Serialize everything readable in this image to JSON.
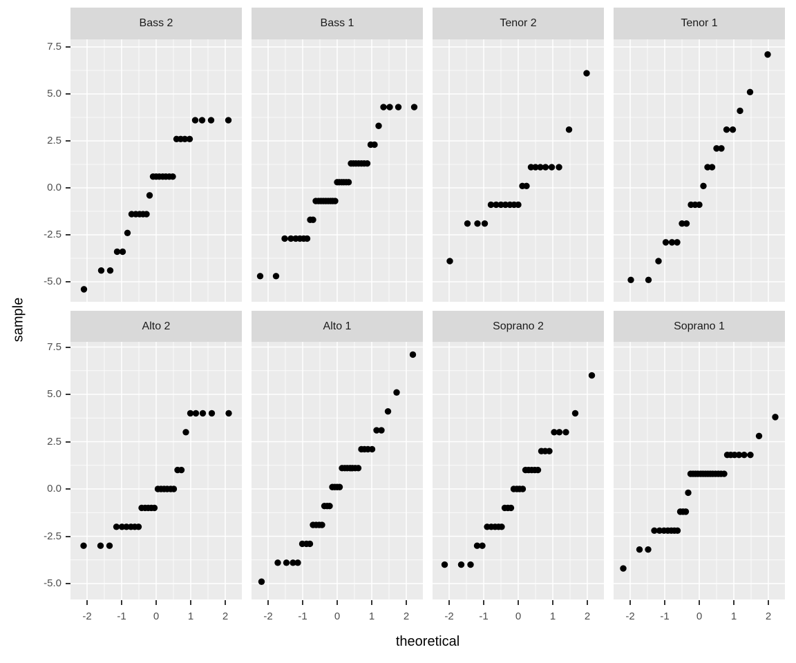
{
  "axis": {
    "x_title": "theoretical",
    "y_title": "sample",
    "x_tick_labels": [
      "-2",
      "-1",
      "0",
      "1",
      "2"
    ],
    "x_tick_values": [
      -2,
      -1,
      0,
      1,
      2
    ],
    "y_tick_labels": [
      "7.5",
      "5.0",
      "2.5",
      "0.0",
      "-2.5",
      "-5.0"
    ],
    "y_tick_values": [
      7.5,
      5.0,
      2.5,
      0.0,
      -2.5,
      -5.0
    ]
  },
  "style": {
    "panel_background": "#ebebeb",
    "strip_background": "#d9d9d9",
    "grid_color": "#ffffff",
    "point_color": "#000000",
    "axis_text_color": "#4d4d4d",
    "tick_mark_color": "#333333",
    "point_radius": 4.7
  },
  "chart_data": {
    "type": "scatter",
    "title": "",
    "xlabel": "theoretical",
    "ylabel": "sample",
    "x_range": [
      -2.48,
      2.48
    ],
    "y_range": [
      -5.9,
      7.9
    ],
    "grid": "major+minor",
    "legend_position": "none",
    "x_major_gridlines": [
      -2,
      -1,
      0,
      1,
      2
    ],
    "x_minor_gridlines": [
      -1.5,
      -0.5,
      0.5,
      1.5
    ],
    "y_major_gridlines": [
      7.5,
      5.0,
      2.5,
      0.0,
      -2.5,
      -5.0
    ],
    "y_minor_gridlines": [
      6.25,
      3.75,
      1.25,
      -1.25,
      -3.75
    ],
    "facets": [
      {
        "label": "Bass 2",
        "row": 0,
        "col": 0,
        "n": 27,
        "points": [
          [
            -2.09,
            -5.4
          ],
          [
            -1.59,
            -4.4
          ],
          [
            -1.33,
            -4.4
          ],
          [
            -1.13,
            -3.4
          ],
          [
            -0.97,
            -3.4
          ],
          [
            -0.83,
            -2.4
          ],
          [
            -0.71,
            -1.4
          ],
          [
            -0.59,
            -1.4
          ],
          [
            -0.48,
            -1.4
          ],
          [
            -0.38,
            -1.4
          ],
          [
            -0.28,
            -1.4
          ],
          [
            -0.19,
            -0.4
          ],
          [
            -0.09,
            0.6
          ],
          [
            0,
            0.6
          ],
          [
            0.09,
            0.6
          ],
          [
            0.19,
            0.6
          ],
          [
            0.28,
            0.6
          ],
          [
            0.38,
            0.6
          ],
          [
            0.48,
            0.6
          ],
          [
            0.59,
            2.6
          ],
          [
            0.71,
            2.6
          ],
          [
            0.83,
            2.6
          ],
          [
            0.97,
            2.6
          ],
          [
            1.13,
            3.6
          ],
          [
            1.33,
            3.6
          ],
          [
            1.59,
            3.6
          ],
          [
            2.09,
            3.6
          ]
        ]
      },
      {
        "label": "Bass 1",
        "row": 0,
        "col": 1,
        "n": 39,
        "points": [
          [
            -2.23,
            -4.7
          ],
          [
            -1.77,
            -4.7
          ],
          [
            -1.52,
            -2.7
          ],
          [
            -1.34,
            -2.7
          ],
          [
            -1.2,
            -2.7
          ],
          [
            -1.08,
            -2.7
          ],
          [
            -0.97,
            -2.7
          ],
          [
            -0.87,
            -2.7
          ],
          [
            -0.78,
            -1.7
          ],
          [
            -0.7,
            -1.7
          ],
          [
            -0.62,
            -0.7
          ],
          [
            -0.54,
            -0.7
          ],
          [
            -0.47,
            -0.7
          ],
          [
            -0.4,
            -0.7
          ],
          [
            -0.33,
            -0.7
          ],
          [
            -0.26,
            -0.7
          ],
          [
            -0.19,
            -0.7
          ],
          [
            -0.13,
            -0.7
          ],
          [
            -0.06,
            -0.7
          ],
          [
            0,
            0.3
          ],
          [
            0.06,
            0.3
          ],
          [
            0.13,
            0.3
          ],
          [
            0.19,
            0.3
          ],
          [
            0.26,
            0.3
          ],
          [
            0.33,
            0.3
          ],
          [
            0.4,
            1.3
          ],
          [
            0.47,
            1.3
          ],
          [
            0.54,
            1.3
          ],
          [
            0.62,
            1.3
          ],
          [
            0.7,
            1.3
          ],
          [
            0.78,
            1.3
          ],
          [
            0.87,
            1.3
          ],
          [
            0.97,
            2.3
          ],
          [
            1.08,
            2.3
          ],
          [
            1.2,
            3.3
          ],
          [
            1.34,
            4.3
          ],
          [
            1.52,
            4.3
          ],
          [
            1.77,
            4.3
          ],
          [
            2.23,
            4.3
          ]
        ]
      },
      {
        "label": "Tenor 2",
        "row": 0,
        "col": 2,
        "n": 21,
        "points": [
          [
            -1.98,
            -3.9
          ],
          [
            -1.47,
            -1.9
          ],
          [
            -1.18,
            -1.9
          ],
          [
            -0.97,
            -1.9
          ],
          [
            -0.79,
            -0.9
          ],
          [
            -0.64,
            -0.9
          ],
          [
            -0.5,
            -0.9
          ],
          [
            -0.37,
            -0.9
          ],
          [
            -0.24,
            -0.9
          ],
          [
            -0.12,
            -0.9
          ],
          [
            0,
            -0.9
          ],
          [
            0.12,
            0.1
          ],
          [
            0.24,
            0.1
          ],
          [
            0.37,
            1.1
          ],
          [
            0.5,
            1.1
          ],
          [
            0.64,
            1.1
          ],
          [
            0.79,
            1.1
          ],
          [
            0.97,
            1.1
          ],
          [
            1.18,
            1.1
          ],
          [
            1.47,
            3.1
          ],
          [
            1.98,
            6.1
          ]
        ]
      },
      {
        "label": "Tenor 1",
        "row": 0,
        "col": 3,
        "n": 21,
        "points": [
          [
            -1.98,
            -4.9
          ],
          [
            -1.47,
            -4.9
          ],
          [
            -1.18,
            -3.9
          ],
          [
            -0.97,
            -2.9
          ],
          [
            -0.79,
            -2.9
          ],
          [
            -0.64,
            -2.9
          ],
          [
            -0.5,
            -1.9
          ],
          [
            -0.37,
            -1.9
          ],
          [
            -0.24,
            -0.9
          ],
          [
            -0.12,
            -0.9
          ],
          [
            0,
            -0.9
          ],
          [
            0.12,
            0.1
          ],
          [
            0.24,
            1.1
          ],
          [
            0.37,
            1.1
          ],
          [
            0.5,
            2.1
          ],
          [
            0.64,
            2.1
          ],
          [
            0.79,
            3.1
          ],
          [
            0.97,
            3.1
          ],
          [
            1.18,
            4.1
          ],
          [
            1.47,
            5.1
          ],
          [
            1.98,
            7.1
          ]
        ]
      },
      {
        "label": "Alto 2",
        "row": 1,
        "col": 0,
        "n": 28,
        "points": [
          [
            -2.1,
            -3
          ],
          [
            -1.61,
            -3
          ],
          [
            -1.35,
            -3
          ],
          [
            -1.15,
            -2
          ],
          [
            -0.99,
            -2
          ],
          [
            -0.86,
            -2
          ],
          [
            -0.73,
            -2
          ],
          [
            -0.62,
            -2
          ],
          [
            -0.51,
            -2
          ],
          [
            -0.42,
            -1
          ],
          [
            -0.32,
            -1
          ],
          [
            -0.23,
            -1
          ],
          [
            -0.14,
            -1
          ],
          [
            -0.05,
            -1
          ],
          [
            0.05,
            0
          ],
          [
            0.14,
            0
          ],
          [
            0.23,
            0
          ],
          [
            0.32,
            0
          ],
          [
            0.42,
            0
          ],
          [
            0.51,
            0
          ],
          [
            0.62,
            1
          ],
          [
            0.73,
            1
          ],
          [
            0.86,
            3
          ],
          [
            0.99,
            4
          ],
          [
            1.15,
            4
          ],
          [
            1.35,
            4
          ],
          [
            1.61,
            4
          ],
          [
            2.1,
            4
          ]
        ]
      },
      {
        "label": "Alto 1",
        "row": 1,
        "col": 1,
        "n": 35,
        "points": [
          [
            -2.19,
            -4.9
          ],
          [
            -1.72,
            -3.9
          ],
          [
            -1.47,
            -3.9
          ],
          [
            -1.28,
            -3.9
          ],
          [
            -1.14,
            -3.9
          ],
          [
            -1.01,
            -2.9
          ],
          [
            -0.89,
            -2.9
          ],
          [
            -0.79,
            -2.9
          ],
          [
            -0.7,
            -1.9
          ],
          [
            -0.61,
            -1.9
          ],
          [
            -0.52,
            -1.9
          ],
          [
            -0.44,
            -1.9
          ],
          [
            -0.37,
            -0.9
          ],
          [
            -0.29,
            -0.9
          ],
          [
            -0.22,
            -0.9
          ],
          [
            -0.14,
            0.1
          ],
          [
            -0.07,
            0.1
          ],
          [
            0,
            0.1
          ],
          [
            0.07,
            0.1
          ],
          [
            0.14,
            1.1
          ],
          [
            0.22,
            1.1
          ],
          [
            0.29,
            1.1
          ],
          [
            0.37,
            1.1
          ],
          [
            0.44,
            1.1
          ],
          [
            0.52,
            1.1
          ],
          [
            0.61,
            1.1
          ],
          [
            0.7,
            2.1
          ],
          [
            0.79,
            2.1
          ],
          [
            0.89,
            2.1
          ],
          [
            1.01,
            2.1
          ],
          [
            1.14,
            3.1
          ],
          [
            1.28,
            3.1
          ],
          [
            1.47,
            4.1
          ],
          [
            1.72,
            5.1
          ],
          [
            2.19,
            7.1
          ]
        ]
      },
      {
        "label": "Soprano 2",
        "row": 1,
        "col": 2,
        "n": 30,
        "points": [
          [
            -2.13,
            -4
          ],
          [
            -1.65,
            -4
          ],
          [
            -1.38,
            -4
          ],
          [
            -1.19,
            -3
          ],
          [
            -1.04,
            -3
          ],
          [
            -0.9,
            -2
          ],
          [
            -0.78,
            -2
          ],
          [
            -0.67,
            -2
          ],
          [
            -0.57,
            -2
          ],
          [
            -0.48,
            -2
          ],
          [
            -0.39,
            -1
          ],
          [
            -0.3,
            -1
          ],
          [
            -0.21,
            -1
          ],
          [
            -0.13,
            0
          ],
          [
            -0.04,
            0
          ],
          [
            0.04,
            0
          ],
          [
            0.13,
            0
          ],
          [
            0.21,
            1
          ],
          [
            0.3,
            1
          ],
          [
            0.39,
            1
          ],
          [
            0.48,
            1
          ],
          [
            0.57,
            1
          ],
          [
            0.67,
            2
          ],
          [
            0.78,
            2
          ],
          [
            0.9,
            2
          ],
          [
            1.04,
            3
          ],
          [
            1.19,
            3
          ],
          [
            1.38,
            3
          ],
          [
            1.65,
            4
          ],
          [
            2.13,
            6
          ]
        ]
      },
      {
        "label": "Soprano 1",
        "row": 1,
        "col": 3,
        "n": 36,
        "points": [
          [
            -2.2,
            -4.2
          ],
          [
            -1.73,
            -3.2
          ],
          [
            -1.48,
            -3.2
          ],
          [
            -1.3,
            -2.2
          ],
          [
            -1.15,
            -2.2
          ],
          [
            -1.02,
            -2.2
          ],
          [
            -0.91,
            -2.2
          ],
          [
            -0.81,
            -2.2
          ],
          [
            -0.72,
            -2.2
          ],
          [
            -0.63,
            -2.2
          ],
          [
            -0.55,
            -1.2
          ],
          [
            -0.47,
            -1.2
          ],
          [
            -0.39,
            -1.2
          ],
          [
            -0.32,
            -0.2
          ],
          [
            -0.25,
            0.8
          ],
          [
            -0.18,
            0.8
          ],
          [
            -0.11,
            0.8
          ],
          [
            -0.04,
            0.8
          ],
          [
            0.04,
            0.8
          ],
          [
            0.11,
            0.8
          ],
          [
            0.18,
            0.8
          ],
          [
            0.25,
            0.8
          ],
          [
            0.32,
            0.8
          ],
          [
            0.39,
            0.8
          ],
          [
            0.47,
            0.8
          ],
          [
            0.55,
            0.8
          ],
          [
            0.63,
            0.8
          ],
          [
            0.72,
            0.8
          ],
          [
            0.81,
            1.8
          ],
          [
            0.91,
            1.8
          ],
          [
            1.02,
            1.8
          ],
          [
            1.15,
            1.8
          ],
          [
            1.3,
            1.8
          ],
          [
            1.48,
            1.8
          ],
          [
            1.73,
            2.8
          ],
          [
            2.2,
            3.8
          ]
        ]
      }
    ]
  }
}
